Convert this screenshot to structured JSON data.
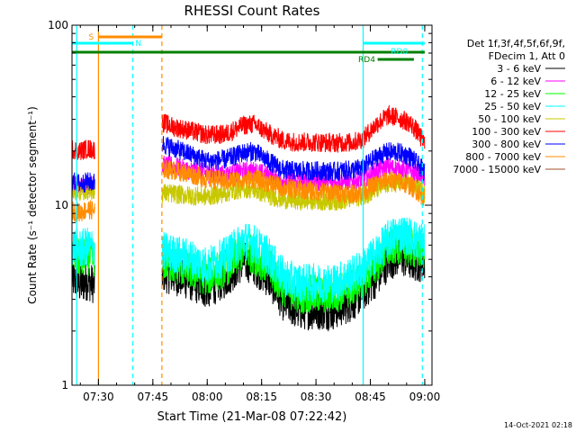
{
  "chart_data": {
    "type": "line",
    "title": "RHESSI Count Rates",
    "xlabel": "Start Time (21-Mar-08 07:22:42)",
    "ylabel": "Count Rate (s⁻¹ detector segment⁻¹)",
    "y_scale": "log",
    "ylim": [
      1,
      100
    ],
    "xlim": [
      "07:22:42",
      "09:02:00"
    ],
    "x_ticks": [
      "07:30",
      "07:45",
      "08:00",
      "08:15",
      "08:30",
      "08:45",
      "09:00"
    ],
    "y_ticks": [
      "1",
      "10",
      "100"
    ],
    "legend_header": [
      "Det 1f,3f,4f,5f,6f,9f,",
      "FDecim 1, Att 0"
    ],
    "legend_placement": "right",
    "timestamp": "14-Oct-2021 02:18",
    "x_knots": [
      "07:22:42",
      "07:25:00",
      "07:27:00",
      "07:29:00",
      "07:30:00",
      "07:47:30",
      "07:50:00",
      "07:55:00",
      "08:00:00",
      "08:05:00",
      "08:10:00",
      "08:13:00",
      "08:17:00",
      "08:21:00",
      "08:25:00",
      "08:30:00",
      "08:35:00",
      "08:40:00",
      "08:43:00",
      "08:47:00",
      "08:50:00",
      "08:53:00",
      "08:56:00",
      "08:58:00",
      "09:00:00"
    ],
    "series": [
      {
        "name": "3 - 6 keV",
        "color": "#000000",
        "values": [
          3.9,
          3.6,
          3.8,
          3.6,
          null,
          4.2,
          4.1,
          3.8,
          3.4,
          3.9,
          4.9,
          4.6,
          3.9,
          2.9,
          2.6,
          2.6,
          2.6,
          2.9,
          3.3,
          4.0,
          4.9,
          5.2,
          4.9,
          4.8,
          4.8
        ]
      },
      {
        "name": "6 - 12 keV",
        "color": "#ff00ff",
        "values": [
          13.0,
          12.7,
          13.1,
          13.0,
          null,
          16.7,
          16.6,
          15.6,
          15.1,
          14.7,
          15.4,
          15.5,
          14.6,
          13.8,
          13.5,
          13.5,
          13.4,
          13.6,
          14.0,
          15.6,
          16.3,
          15.8,
          15.5,
          14.8,
          14.2
        ]
      },
      {
        "name": "12 - 25 keV",
        "color": "#00ff00",
        "values": [
          5.3,
          5.0,
          5.2,
          5.1,
          null,
          4.9,
          4.7,
          4.4,
          4.0,
          4.5,
          5.6,
          5.3,
          4.5,
          3.5,
          3.2,
          3.2,
          3.2,
          3.5,
          3.9,
          4.8,
          5.7,
          6.1,
          5.8,
          5.6,
          5.6
        ]
      },
      {
        "name": "25 - 50 keV",
        "color": "#00ffff",
        "values": [
          6.0,
          5.7,
          5.9,
          5.8,
          null,
          5.6,
          5.4,
          5.1,
          4.6,
          5.2,
          6.4,
          6.1,
          5.2,
          4.0,
          3.7,
          3.7,
          3.7,
          4.1,
          4.5,
          5.5,
          6.5,
          7.0,
          6.7,
          6.4,
          6.3
        ]
      },
      {
        "name": "50 - 100 keV",
        "color": "#c8c800",
        "values": [
          12.2,
          11.9,
          12.1,
          12.0,
          null,
          11.7,
          11.6,
          11.3,
          11.2,
          11.7,
          12.4,
          12.2,
          11.3,
          10.8,
          10.6,
          10.6,
          10.5,
          10.9,
          11.3,
          12.3,
          13.2,
          13.4,
          13.0,
          12.4,
          11.6
        ]
      },
      {
        "name": "100 - 300 keV",
        "color": "#ff0000",
        "values": [
          20.5,
          20.0,
          20.6,
          20.3,
          null,
          29.0,
          27.5,
          26.0,
          24.5,
          24.8,
          27.8,
          28.2,
          25.0,
          22.8,
          22.4,
          22.4,
          22.2,
          22.3,
          23.4,
          28.6,
          31.5,
          30.5,
          28.5,
          25.5,
          21.8
        ]
      },
      {
        "name": "300 - 800 keV",
        "color": "#0000ff",
        "values": [
          13.6,
          13.2,
          13.5,
          13.3,
          null,
          22.0,
          21.0,
          19.3,
          17.6,
          17.9,
          19.6,
          19.9,
          17.5,
          15.7,
          15.5,
          15.5,
          15.4,
          15.7,
          16.2,
          18.7,
          19.8,
          19.6,
          18.6,
          16.9,
          15.2
        ]
      },
      {
        "name": "800 - 7000 keV",
        "color": "#ff8c00",
        "values": [
          9.3,
          9.1,
          9.5,
          9.3,
          null,
          15.9,
          15.7,
          15.0,
          14.0,
          13.6,
          13.9,
          14.0,
          13.3,
          12.5,
          12.2,
          12.0,
          11.8,
          11.6,
          11.9,
          13.2,
          13.8,
          13.4,
          12.8,
          11.9,
          10.9
        ]
      },
      {
        "name": "7000 - 15000 keV",
        "color": "#a0522d",
        "values": []
      }
    ],
    "vertical_lines": [
      {
        "time": "07:24:00",
        "color": "#00ffff",
        "style": "solid"
      },
      {
        "time": "07:30:00",
        "color": "#ff8c00",
        "style": "solid"
      },
      {
        "time": "07:39:30",
        "color": "#00ffff",
        "style": "dashed"
      },
      {
        "time": "07:47:30",
        "color": "#ff8c00",
        "style": "dashed"
      },
      {
        "time": "08:43:00",
        "color": "#00ffff",
        "style": "solid"
      },
      {
        "time": "08:59:20",
        "color": "#00ffff",
        "style": "dashed"
      }
    ],
    "flag_bars": [
      {
        "label": "S",
        "color": "#ff8c00",
        "start": "07:30:00",
        "end": "07:47:30"
      },
      {
        "label": "N",
        "color": "#00ffff",
        "start": "07:22:42",
        "end": "07:39:30",
        "label_at": "07:41:00"
      },
      {
        "label": "",
        "color": "#008000",
        "start": "07:22:42",
        "end": "09:00:00"
      },
      {
        "label": "RD0",
        "color": "#00ffff",
        "start": "08:43:00",
        "end": "09:00:00",
        "label_at": "08:53:00"
      },
      {
        "label": "RD4",
        "color": "#008000",
        "start": "08:47:00",
        "end": "08:57:00",
        "label_at": "08:44:00"
      }
    ]
  }
}
